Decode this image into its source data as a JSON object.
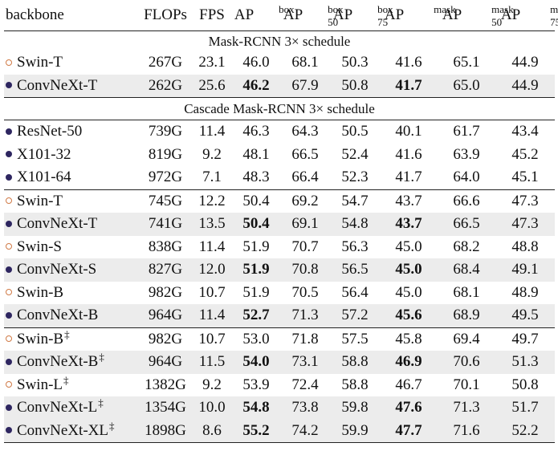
{
  "headers": {
    "backbone": "backbone",
    "flops": "FLOPs",
    "fps": "FPS",
    "ap": "AP",
    "box": "box",
    "mask": "mask",
    "s50": "50",
    "s75": "75"
  },
  "sections": {
    "mask_rcnn": "Mask-RCNN 3× schedule",
    "cascade": "Cascade Mask-RCNN 3× schedule"
  },
  "dagger": "‡",
  "rows": [
    {
      "model": "Swin-T",
      "marker": "circle",
      "flops": "267G",
      "fps": "23.1",
      "ap_box": "46.0",
      "ap_box50": "68.1",
      "ap_box75": "50.3",
      "ap_mask": "41.6",
      "ap_mask50": "65.1",
      "ap_mask75": "44.9"
    },
    {
      "model": "ConvNeXt-T",
      "marker": "dot",
      "flops": "262G",
      "fps": "25.6",
      "ap_box": "46.2",
      "ap_box50": "67.9",
      "ap_box75": "50.8",
      "ap_mask": "41.7",
      "ap_mask50": "65.0",
      "ap_mask75": "44.9"
    },
    {
      "model": "ResNet-50",
      "marker": "dot",
      "flops": "739G",
      "fps": "11.4",
      "ap_box": "46.3",
      "ap_box50": "64.3",
      "ap_box75": "50.5",
      "ap_mask": "40.1",
      "ap_mask50": "61.7",
      "ap_mask75": "43.4"
    },
    {
      "model": "X101-32",
      "marker": "dot",
      "flops": "819G",
      "fps": "9.2",
      "ap_box": "48.1",
      "ap_box50": "66.5",
      "ap_box75": "52.4",
      "ap_mask": "41.6",
      "ap_mask50": "63.9",
      "ap_mask75": "45.2"
    },
    {
      "model": "X101-64",
      "marker": "dot",
      "flops": "972G",
      "fps": "7.1",
      "ap_box": "48.3",
      "ap_box50": "66.4",
      "ap_box75": "52.3",
      "ap_mask": "41.7",
      "ap_mask50": "64.0",
      "ap_mask75": "45.1"
    },
    {
      "model": "Swin-T",
      "marker": "circle",
      "flops": "745G",
      "fps": "12.2",
      "ap_box": "50.4",
      "ap_box50": "69.2",
      "ap_box75": "54.7",
      "ap_mask": "43.7",
      "ap_mask50": "66.6",
      "ap_mask75": "47.3"
    },
    {
      "model": "ConvNeXt-T",
      "marker": "dot",
      "flops": "741G",
      "fps": "13.5",
      "ap_box": "50.4",
      "ap_box50": "69.1",
      "ap_box75": "54.8",
      "ap_mask": "43.7",
      "ap_mask50": "66.5",
      "ap_mask75": "47.3"
    },
    {
      "model": "Swin-S",
      "marker": "circle",
      "flops": "838G",
      "fps": "11.4",
      "ap_box": "51.9",
      "ap_box50": "70.7",
      "ap_box75": "56.3",
      "ap_mask": "45.0",
      "ap_mask50": "68.2",
      "ap_mask75": "48.8"
    },
    {
      "model": "ConvNeXt-S",
      "marker": "dot",
      "flops": "827G",
      "fps": "12.0",
      "ap_box": "51.9",
      "ap_box50": "70.8",
      "ap_box75": "56.5",
      "ap_mask": "45.0",
      "ap_mask50": "68.4",
      "ap_mask75": "49.1"
    },
    {
      "model": "Swin-B",
      "marker": "circle",
      "flops": "982G",
      "fps": "10.7",
      "ap_box": "51.9",
      "ap_box50": "70.5",
      "ap_box75": "56.4",
      "ap_mask": "45.0",
      "ap_mask50": "68.1",
      "ap_mask75": "48.9"
    },
    {
      "model": "ConvNeXt-B",
      "marker": "dot",
      "flops": "964G",
      "fps": "11.4",
      "ap_box": "52.7",
      "ap_box50": "71.3",
      "ap_box75": "57.2",
      "ap_mask": "45.6",
      "ap_mask50": "68.9",
      "ap_mask75": "49.5"
    },
    {
      "model": "Swin-B",
      "marker": "circle",
      "flops": "982G",
      "fps": "10.7",
      "ap_box": "53.0",
      "ap_box50": "71.8",
      "ap_box75": "57.5",
      "ap_mask": "45.8",
      "ap_mask50": "69.4",
      "ap_mask75": "49.7"
    },
    {
      "model": "ConvNeXt-B",
      "marker": "dot",
      "flops": "964G",
      "fps": "11.5",
      "ap_box": "54.0",
      "ap_box50": "73.1",
      "ap_box75": "58.8",
      "ap_mask": "46.9",
      "ap_mask50": "70.6",
      "ap_mask75": "51.3"
    },
    {
      "model": "Swin-L",
      "marker": "circle",
      "flops": "1382G",
      "fps": "9.2",
      "ap_box": "53.9",
      "ap_box50": "72.4",
      "ap_box75": "58.8",
      "ap_mask": "46.7",
      "ap_mask50": "70.1",
      "ap_mask75": "50.8"
    },
    {
      "model": "ConvNeXt-L",
      "marker": "dot",
      "flops": "1354G",
      "fps": "10.0",
      "ap_box": "54.8",
      "ap_box50": "73.8",
      "ap_box75": "59.8",
      "ap_mask": "47.6",
      "ap_mask50": "71.3",
      "ap_mask75": "51.7"
    },
    {
      "model": "ConvNeXt-XL",
      "marker": "dot",
      "flops": "1898G",
      "fps": "8.6",
      "ap_box": "55.2",
      "ap_box50": "74.2",
      "ap_box75": "59.9",
      "ap_mask": "47.7",
      "ap_mask50": "71.6",
      "ap_mask75": "52.2"
    }
  ]
}
